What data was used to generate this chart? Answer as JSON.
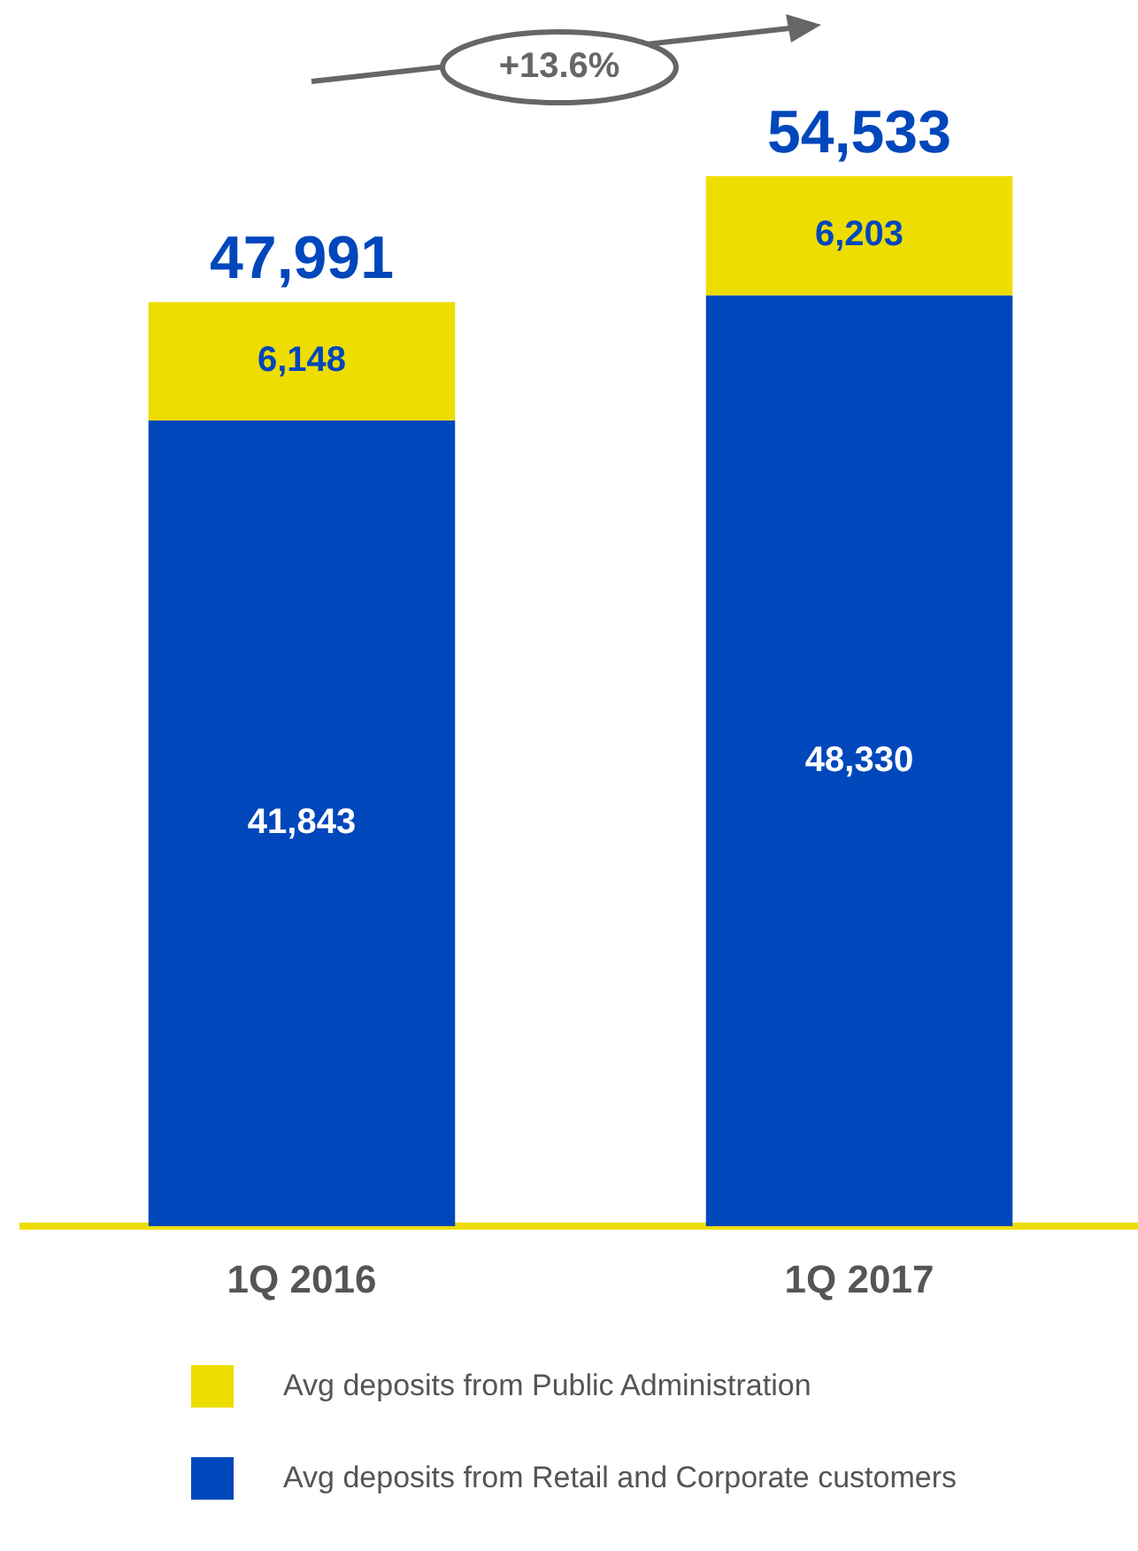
{
  "chart_data": {
    "type": "bar",
    "stacked": true,
    "categories": [
      "1Q 2016",
      "1Q 2017"
    ],
    "series": [
      {
        "name": "Avg deposits from Retail and Corporate customers",
        "color": "#0047bb",
        "values": [
          41843,
          48330
        ],
        "value_labels": [
          "41,843",
          "48,330"
        ]
      },
      {
        "name": "Avg deposits from Public Administration",
        "color": "#eedd00",
        "values": [
          6148,
          6203
        ],
        "value_labels": [
          "6,148",
          "6,203"
        ]
      }
    ],
    "totals": [
      "47,991",
      "54,533"
    ],
    "annotations": [
      "+13.6%"
    ],
    "legend": "bottom",
    "grid": false
  }
}
